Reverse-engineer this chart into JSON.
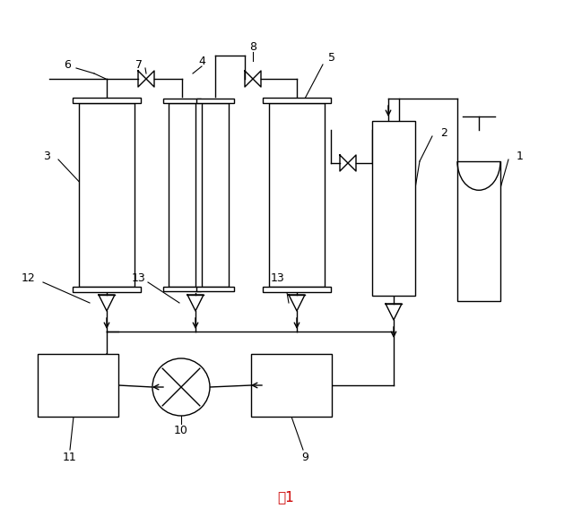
{
  "title": "图1",
  "bg_color": "#ffffff",
  "line_color": "#000000",
  "lw": 1.0
}
